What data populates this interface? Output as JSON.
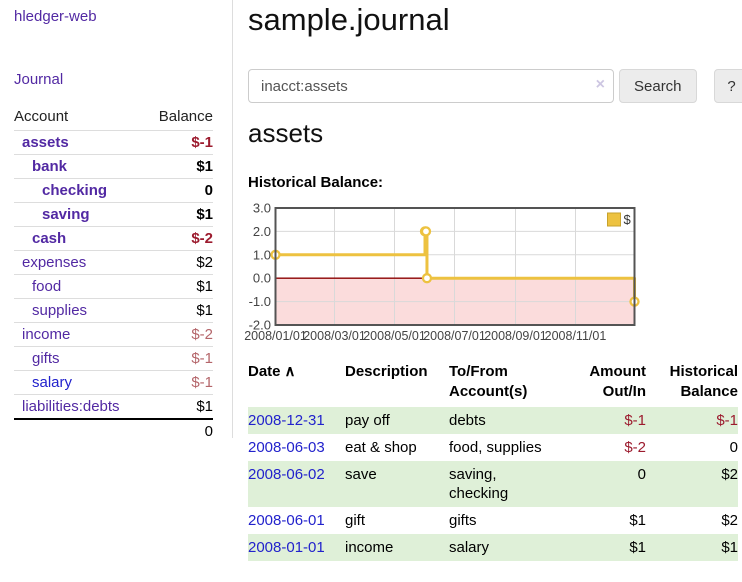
{
  "colors": {
    "purple": "#5229a3",
    "blue": "#2222cc",
    "negStrong": "#9c1b2e",
    "negSoft": "#b4656a",
    "stripe": "#dff0d8",
    "gold": "#edc240",
    "goldDark": "#c7a22c",
    "pink": "#fbdcdc",
    "zero": "#8b0000",
    "chartBorder": "#545454",
    "grid": "#d9d9d9"
  },
  "sidebar": {
    "brand": "hledger-web",
    "journal_link": "Journal",
    "account_header": "Account",
    "balance_header": "Balance",
    "accounts": [
      {
        "name": "assets",
        "balance": "$-1",
        "level": 0,
        "bold": true,
        "balance_tone": "neg-strong"
      },
      {
        "name": "bank",
        "balance": "$1",
        "level": 1,
        "bold": true,
        "balance_tone": ""
      },
      {
        "name": "checking",
        "balance": "0",
        "level": 2,
        "bold": true,
        "balance_tone": ""
      },
      {
        "name": "saving",
        "balance": "$1",
        "level": 2,
        "bold": true,
        "balance_tone": ""
      },
      {
        "name": "cash",
        "balance": "$-2",
        "level": 1,
        "bold": true,
        "balance_tone": "neg-strong"
      },
      {
        "name": "expenses",
        "balance": "$2",
        "level": 0,
        "bold": false,
        "balance_tone": ""
      },
      {
        "name": "food",
        "balance": "$1",
        "level": 1,
        "bold": false,
        "balance_tone": ""
      },
      {
        "name": "supplies",
        "balance": "$1",
        "level": 1,
        "bold": false,
        "balance_tone": ""
      },
      {
        "name": "income",
        "balance": "$-2",
        "level": 0,
        "bold": false,
        "balance_tone": "neg-soft"
      },
      {
        "name": "gifts",
        "balance": "$-1",
        "level": 1,
        "bold": false,
        "balance_tone": "neg-soft"
      },
      {
        "name": "salary",
        "balance": "$-1",
        "level": 1,
        "bold": false,
        "balance_tone": "neg-soft",
        "link_tone": "blue"
      },
      {
        "name": "liabilities:debts",
        "balance": "$1",
        "level": 0,
        "bold": false,
        "balance_tone": ""
      }
    ],
    "total": "0"
  },
  "main": {
    "title": "sample.journal",
    "search": {
      "value": "inacct:assets",
      "clear_icon": "×",
      "button_label": "Search",
      "help_label": "?"
    },
    "account_heading": "assets",
    "chart_title": "Historical Balance:"
  },
  "chart_data": {
    "type": "line",
    "step": true,
    "title": "Historical Balance:",
    "legend": [
      {
        "label": "$",
        "color": "#edc240"
      }
    ],
    "series": [
      {
        "name": "$",
        "x": [
          "2008-01-01",
          "2008-06-01",
          "2008-06-02",
          "2008-06-03",
          "2008-12-31"
        ],
        "y": [
          1,
          2,
          2,
          0,
          -1
        ]
      }
    ],
    "xlim": [
      "2008-01-01",
      "2008-12-31"
    ],
    "ylim": [
      -2,
      3
    ],
    "yticks": [
      {
        "label": "3.0",
        "value": 3
      },
      {
        "label": "2.0",
        "value": 2
      },
      {
        "label": "1.0",
        "value": 1
      },
      {
        "label": "0.0",
        "value": 0
      },
      {
        "label": "-1.0",
        "value": -1
      },
      {
        "label": "-2.0",
        "value": -2
      }
    ],
    "xticks": [
      {
        "label": "2008/01/01",
        "date": "2008-01-01"
      },
      {
        "label": "2008/03/01",
        "date": "2008-03-01"
      },
      {
        "label": "2008/05/01",
        "date": "2008-05-01"
      },
      {
        "label": "2008/07/01",
        "date": "2008-07-01"
      },
      {
        "label": "2008/09/01",
        "date": "2008-09-01"
      },
      {
        "label": "2008/11/01",
        "date": "2008-11-01"
      }
    ],
    "grid": true,
    "legend_position": "top-right",
    "negative_region_shaded": true
  },
  "register": {
    "headers": {
      "date": "Date",
      "sort_icon": "∧",
      "description": "Description",
      "accounts": "To/From Account(s)",
      "amount": "Amount Out/In",
      "balance": "Historical Balance"
    },
    "rows": [
      {
        "date": "2008-12-31",
        "description": "pay off",
        "accounts": "debts",
        "amount": "$-1",
        "balance": "$-1",
        "amount_neg": true,
        "balance_neg": true
      },
      {
        "date": "2008-06-03",
        "description": "eat & shop",
        "accounts": "food, supplies",
        "amount": "$-2",
        "balance": "0",
        "amount_neg": true,
        "balance_neg": false
      },
      {
        "date": "2008-06-02",
        "description": "save",
        "accounts": "saving, checking",
        "amount": "0",
        "balance": "$2",
        "amount_neg": false,
        "balance_neg": false
      },
      {
        "date": "2008-06-01",
        "description": "gift",
        "accounts": "gifts",
        "amount": "$1",
        "balance": "$2",
        "amount_neg": false,
        "balance_neg": false
      },
      {
        "date": "2008-01-01",
        "description": "income",
        "accounts": "salary",
        "amount": "$1",
        "balance": "$1",
        "amount_neg": false,
        "balance_neg": false
      }
    ]
  }
}
